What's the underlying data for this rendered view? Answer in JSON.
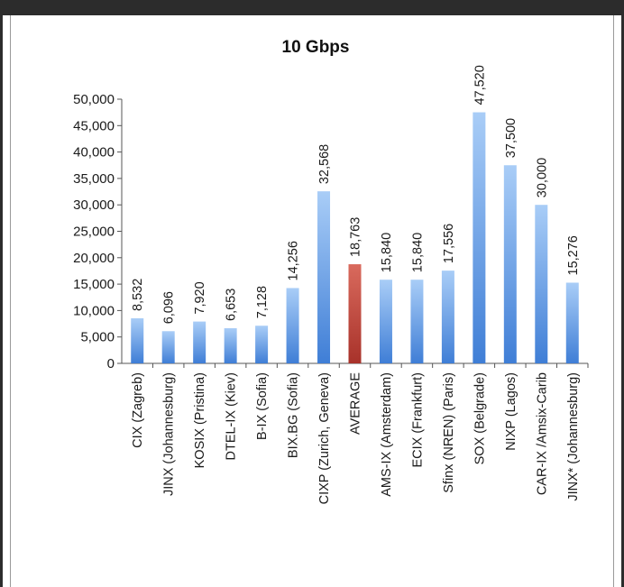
{
  "chart_data": {
    "type": "bar",
    "title": "10 Gbps",
    "xlabel": "",
    "ylabel": "",
    "ylim": [
      0,
      50000
    ],
    "yticks": [
      "0",
      "5,000",
      "10,000",
      "15,000",
      "20,000",
      "25,000",
      "30,000",
      "35,000",
      "40,000",
      "45,000",
      "50,000"
    ],
    "grid": false,
    "legend": "none",
    "categories": [
      "CIX (Zagreb)",
      "JINX   (Johannesburg)",
      "KOSIX (Pristina)",
      "DTEL-IX (Kiev)",
      "B-IX  (Sofia)",
      "BIX.BG (Sofia)",
      "CIXP (Zurich, Geneva)",
      "AVERAGE",
      "AMS-IX (Amsterdam)",
      "ECIX (Frankfurt)",
      "Sfinx (NREN)  (Paris)",
      "SOX (Belgrade)",
      "NIXP (Lagos)",
      "CAR-IX  /Amsix-Carib",
      "JINX* (Johannesburg)"
    ],
    "values": [
      8532,
      6096,
      7920,
      6653,
      7128,
      14256,
      32568,
      18763,
      15840,
      15840,
      17556,
      47520,
      37500,
      30000,
      15276
    ],
    "data_labels": [
      "8,532",
      "6,096",
      "7,920",
      "6,653",
      "7,128",
      "14,256",
      "32,568",
      "18,763",
      "15,840",
      "15,840",
      "17,556",
      "47,520",
      "37,500",
      "30,000",
      "15,276"
    ],
    "highlight_index": 7,
    "colors": {
      "bar_top": "#a9cdf7",
      "bar_bottom": "#3f7ed6",
      "highlight_top": "#d96a5d",
      "highlight_bottom": "#a8322a"
    }
  }
}
